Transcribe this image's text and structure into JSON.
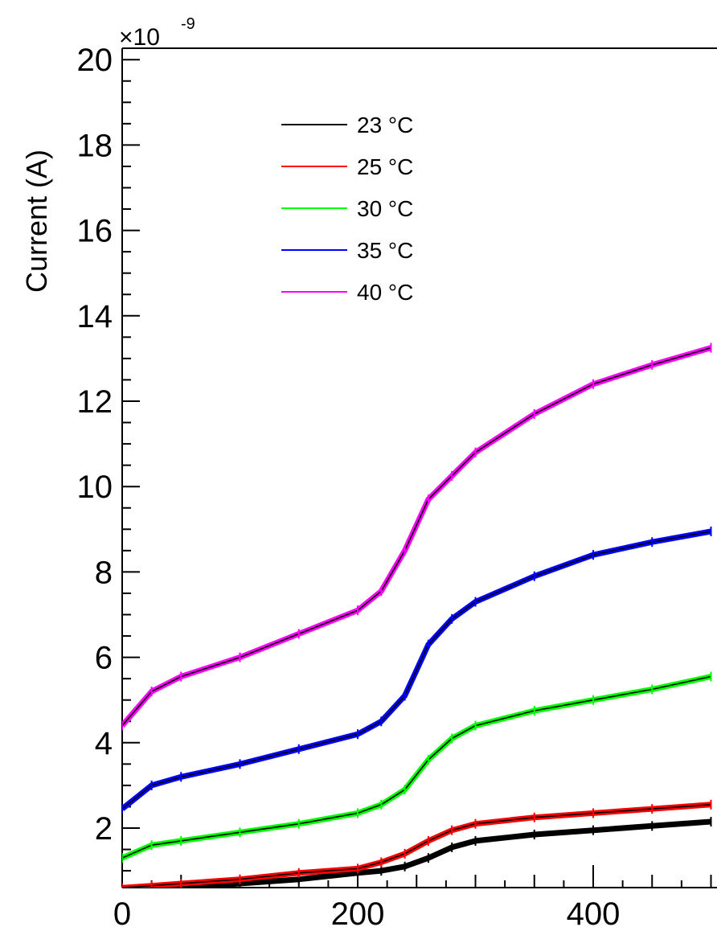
{
  "chart_data": {
    "type": "line",
    "ylabel": "Current (A)",
    "xlabel": "",
    "y_multiplier": "×10",
    "y_multiplier_exp": "-9",
    "xlim": [
      0,
      500
    ],
    "ylim": [
      0.7,
      20
    ],
    "x_ticks": [
      0,
      200,
      400
    ],
    "y_ticks": [
      2,
      4,
      6,
      8,
      10,
      12,
      14,
      16,
      18,
      20
    ],
    "legend_position": "top-left",
    "grid": false,
    "series": [
      {
        "name": "23 °C",
        "color": "#000000",
        "x": [
          0,
          25,
          50,
          100,
          150,
          200,
          220,
          240,
          260,
          280,
          300,
          350,
          400,
          450,
          500
        ],
        "y": [
          0.5,
          0.55,
          0.6,
          0.7,
          0.8,
          0.95,
          1.0,
          1.1,
          1.3,
          1.55,
          1.7,
          1.85,
          1.95,
          2.05,
          2.15
        ]
      },
      {
        "name": "25 °C",
        "color": "#ff0000",
        "x": [
          0,
          25,
          50,
          100,
          150,
          200,
          220,
          240,
          260,
          280,
          300,
          350,
          400,
          450,
          500
        ],
        "y": [
          0.6,
          0.65,
          0.7,
          0.8,
          0.95,
          1.05,
          1.2,
          1.4,
          1.7,
          1.95,
          2.1,
          2.25,
          2.35,
          2.45,
          2.55
        ]
      },
      {
        "name": "30 °C",
        "color": "#00ff00",
        "x": [
          0,
          25,
          50,
          100,
          150,
          200,
          220,
          240,
          260,
          280,
          300,
          350,
          400,
          450,
          500
        ],
        "y": [
          1.3,
          1.6,
          1.7,
          1.9,
          2.1,
          2.35,
          2.55,
          2.9,
          3.6,
          4.1,
          4.4,
          4.75,
          5.0,
          5.25,
          5.55
        ]
      },
      {
        "name": "35 °C",
        "color": "#0000ff",
        "x": [
          0,
          25,
          50,
          100,
          150,
          200,
          220,
          240,
          260,
          280,
          300,
          350,
          400,
          450,
          500
        ],
        "y": [
          2.45,
          3.0,
          3.2,
          3.5,
          3.85,
          4.2,
          4.5,
          5.1,
          6.3,
          6.9,
          7.3,
          7.9,
          8.4,
          8.7,
          8.95
        ]
      },
      {
        "name": "40 °C",
        "color": "#ff00ff",
        "x": [
          0,
          25,
          50,
          100,
          150,
          200,
          220,
          240,
          260,
          280,
          300,
          350,
          400,
          450,
          500
        ],
        "y": [
          4.4,
          5.2,
          5.55,
          6.0,
          6.55,
          7.1,
          7.55,
          8.5,
          9.7,
          10.25,
          10.8,
          11.7,
          12.4,
          12.85,
          13.25
        ]
      }
    ]
  }
}
